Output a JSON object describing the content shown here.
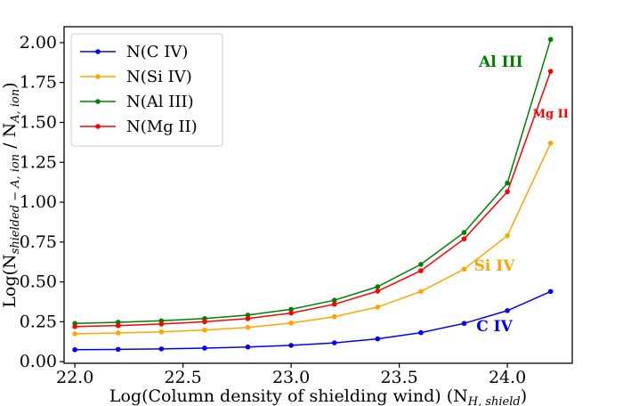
{
  "chart_data": {
    "type": "line",
    "xlabel_main": "Log(Column density of shielding wind) (N",
    "xlabel_sub": "H, shield",
    "xlabel_close": ")",
    "ylabel_main": "Log(N",
    "ylabel_sub1": "shielded − A, ion",
    "ylabel_mid": " / N",
    "ylabel_sub2": "A, ion",
    "ylabel_close": ")",
    "xlim": [
      21.95,
      24.3
    ],
    "ylim": [
      -0.01,
      2.1
    ],
    "xticks": [
      "22.0",
      "22.5",
      "23.0",
      "23.5",
      "24.0"
    ],
    "xtick_values": [
      22.0,
      22.5,
      23.0,
      23.5,
      24.0
    ],
    "yticks": [
      "0.00",
      "0.25",
      "0.50",
      "0.75",
      "1.00",
      "1.25",
      "1.50",
      "1.75",
      "2.00"
    ],
    "ytick_values": [
      0.0,
      0.25,
      0.5,
      0.75,
      1.0,
      1.25,
      1.5,
      1.75,
      2.0
    ],
    "x": [
      22.0,
      22.2,
      22.4,
      22.6,
      22.8,
      23.0,
      23.2,
      23.4,
      23.6,
      23.8,
      24.0,
      24.2
    ],
    "series": [
      {
        "name": "N(C IV)",
        "color": "#0000ff",
        "values": [
          0.075,
          0.077,
          0.08,
          0.085,
          0.092,
          0.102,
          0.118,
          0.143,
          0.182,
          0.24,
          0.32,
          0.44
        ]
      },
      {
        "name": "N(Si IV)",
        "color": "#ffa500",
        "values": [
          0.175,
          0.18,
          0.187,
          0.198,
          0.215,
          0.242,
          0.282,
          0.342,
          0.44,
          0.58,
          0.79,
          1.37
        ]
      },
      {
        "name": "N(Al III)",
        "color": "#008000",
        "values": [
          0.24,
          0.247,
          0.256,
          0.27,
          0.292,
          0.328,
          0.385,
          0.47,
          0.61,
          0.81,
          1.12,
          2.02
        ]
      },
      {
        "name": "N(Mg II)",
        "color": "#ff0000",
        "values": [
          0.22,
          0.226,
          0.236,
          0.25,
          0.27,
          0.305,
          0.36,
          0.442,
          0.57,
          0.77,
          1.065,
          1.82
        ]
      }
    ],
    "annotations": [
      {
        "text": "Al III",
        "color": "#008000",
        "x": 23.97,
        "y": 1.85,
        "size": 17
      },
      {
        "text": "Mg II",
        "color": "#ff0000",
        "x": 24.2,
        "y": 1.53,
        "size": 13
      },
      {
        "text": "Si IV",
        "color": "#ffa500",
        "x": 23.94,
        "y": 0.57,
        "size": 17
      },
      {
        "text": "C IV",
        "color": "#0000ff",
        "x": 23.94,
        "y": 0.19,
        "size": 17
      }
    ],
    "legend_position": "top-left"
  }
}
